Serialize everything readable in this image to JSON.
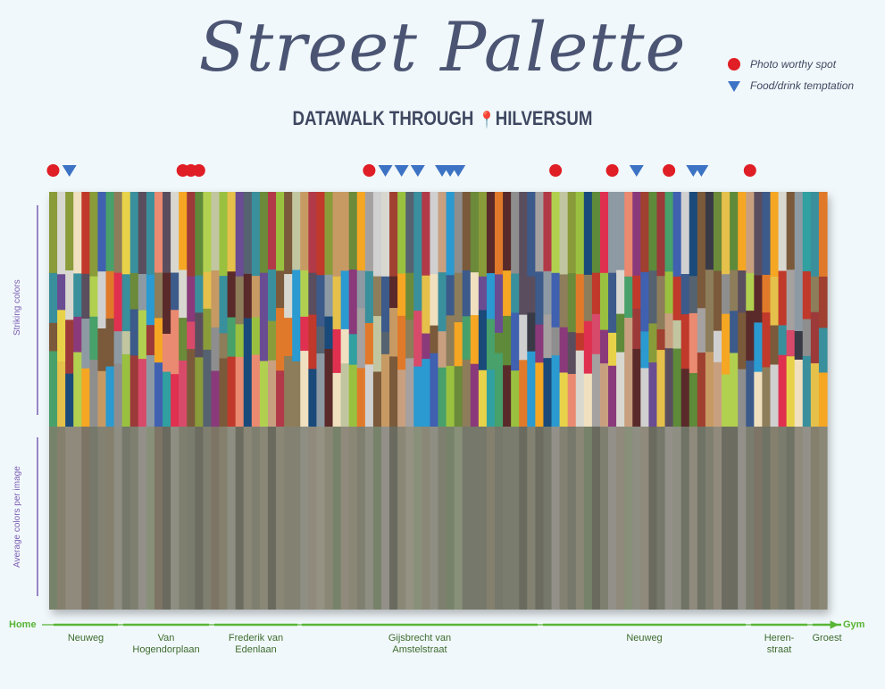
{
  "title": "Street Palette",
  "subtitle_pre": "DATAWALK THROUGH",
  "subtitle_post": "HILVERSUM",
  "legend": {
    "photo": "Photo worthy spot",
    "food": "Food/drink temptation",
    "photo_color": "#e01e25",
    "food_color": "#3d73c4"
  },
  "axis_labels": {
    "top": "Striking colors",
    "bottom": "Average colors per image"
  },
  "route": {
    "start": "Home",
    "end": "Gym"
  },
  "streets": [
    {
      "name": "Neuweg"
    },
    {
      "name": "Van\nHogendorplaan"
    },
    {
      "name": "Frederik van\nEdenlaan"
    },
    {
      "name": "Gijsbrecht van\nAmstelstraat"
    },
    {
      "name": "Neuweg"
    },
    {
      "name": "Heren-\nstraat"
    },
    {
      "name": "Groest"
    }
  ],
  "chart_data": {
    "type": "heatmap",
    "n_images": 96,
    "markers": [
      {
        "image": 1,
        "kind": "photo"
      },
      {
        "image": 3,
        "kind": "food"
      },
      {
        "image": 17,
        "kind": "photo"
      },
      {
        "image": 18,
        "kind": "photo"
      },
      {
        "image": 19,
        "kind": "photo"
      },
      {
        "image": 40,
        "kind": "photo"
      },
      {
        "image": 42,
        "kind": "food"
      },
      {
        "image": 44,
        "kind": "food"
      },
      {
        "image": 46,
        "kind": "food"
      },
      {
        "image": 49,
        "kind": "food"
      },
      {
        "image": 50,
        "kind": "food"
      },
      {
        "image": 51,
        "kind": "food"
      },
      {
        "image": 63,
        "kind": "photo"
      },
      {
        "image": 70,
        "kind": "photo"
      },
      {
        "image": 73,
        "kind": "food"
      },
      {
        "image": 77,
        "kind": "photo"
      },
      {
        "image": 80,
        "kind": "food"
      },
      {
        "image": 81,
        "kind": "food"
      },
      {
        "image": 87,
        "kind": "photo"
      }
    ],
    "palette_top": [
      "#8d9aa3",
      "#3a8f9c",
      "#8d7d5a",
      "#9c3a3a",
      "#6b8a3a",
      "#a5a1a0",
      "#c79a63",
      "#556270",
      "#8a9b3a",
      "#5a4e5e",
      "#c1c6a0",
      "#6a4c93",
      "#b23a48",
      "#d8d8d0",
      "#8e8e8e",
      "#3c5a8a",
      "#a04030",
      "#5e8a3a",
      "#e5c04a",
      "#3a3a46"
    ],
    "palette_mid": [
      "#e07a2a",
      "#2a9ad0",
      "#c0392b",
      "#e8d24a",
      "#8a3a7a",
      "#48a06a",
      "#d84a6a",
      "#f0e0c0",
      "#1a4a7a",
      "#b2d050",
      "#ea8a70",
      "#7a5a3a",
      "#30a0a0",
      "#f5a623",
      "#d0d0d0",
      "#5a2a2a",
      "#9ac040",
      "#e03050",
      "#4060b0",
      "#c8a080"
    ],
    "palette_avg": [
      "#7f7f70",
      "#8a8777",
      "#75786a",
      "#908a7c",
      "#6f7365",
      "#838272",
      "#7a7d6e",
      "#959283",
      "#6c6d60",
      "#88907a",
      "#7d7466",
      "#8e8e82",
      "#77826a",
      "#6a6a5e",
      "#929088",
      "#85806e"
    ]
  }
}
